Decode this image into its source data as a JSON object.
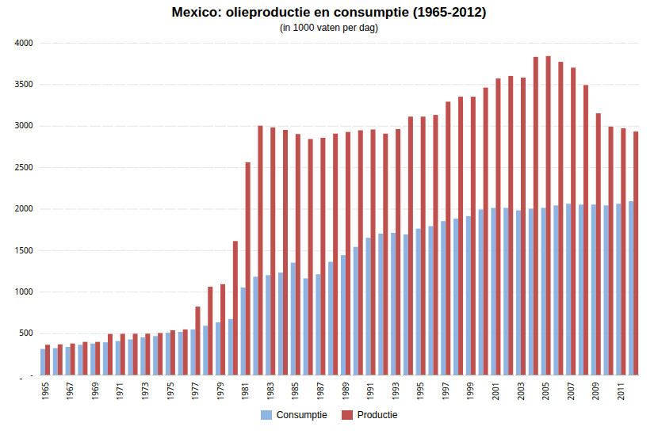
{
  "chart_data": {
    "type": "bar",
    "title": "Mexico: olieproductie en consumptie (1965-2012)",
    "subtitle": "(in 1000 vaten per dag)",
    "categories": [
      "1965",
      null,
      "1967",
      null,
      "1969",
      null,
      "1971",
      null,
      "1973",
      null,
      "1975",
      null,
      "1977",
      null,
      "1979",
      null,
      "1981",
      null,
      "1983",
      null,
      "1985",
      null,
      "1987",
      null,
      "1989",
      null,
      "1991",
      null,
      "1993",
      null,
      "1995",
      null,
      "1997",
      null,
      "1999",
      null,
      "2001",
      null,
      "2003",
      null,
      "2005",
      null,
      "2007",
      null,
      "2009",
      null,
      "2011",
      null
    ],
    "series": [
      {
        "name": "Consumptie",
        "color": "#8EB4E3",
        "values": [
          310,
          320,
          335,
          360,
          375,
          390,
          405,
          425,
          450,
          465,
          505,
          515,
          545,
          590,
          630,
          670,
          1050,
          1180,
          1200,
          1230,
          1350,
          1160,
          1210,
          1360,
          1440,
          1540,
          1650,
          1700,
          1710,
          1690,
          1760,
          1790,
          1850,
          1880,
          1910,
          1990,
          2010,
          2010,
          1980,
          2000,
          2010,
          2040,
          2060,
          2050,
          2050,
          2040,
          2060,
          2090
        ]
      },
      {
        "name": "Productie",
        "color": "#C0504D",
        "values": [
          360,
          365,
          375,
          395,
          395,
          490,
          492,
          493,
          494,
          502,
          535,
          545,
          820,
          1060,
          1090,
          1610,
          2560,
          3000,
          2980,
          2950,
          2900,
          2840,
          2855,
          2905,
          2925,
          2945,
          2955,
          2905,
          2960,
          3110,
          3110,
          3130,
          3290,
          3350,
          3350,
          3460,
          3570,
          3600,
          3580,
          3830,
          3840,
          3770,
          3700,
          3490,
          3150,
          2990,
          2970,
          2930
        ]
      }
    ],
    "ylim": [
      0,
      4000
    ],
    "yticks": [
      {
        "value": 0,
        "label": "-"
      },
      500,
      1000,
      1500,
      2000,
      2500,
      3000,
      3500,
      4000
    ],
    "grid": true,
    "legend": "bottom",
    "annotations": [
      "-"
    ]
  }
}
